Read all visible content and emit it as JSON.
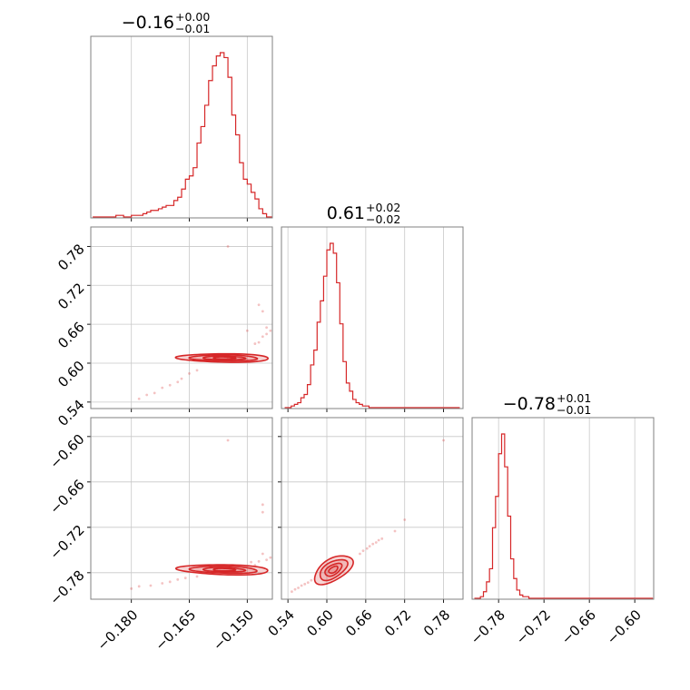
{
  "chart_data": {
    "type": "corner",
    "color": "#d62728",
    "grid": true,
    "parameters": [
      {
        "title_value": "−0.16",
        "title_plus": "+0.00",
        "title_minus": "−0.01",
        "range": [
          -0.1905,
          -0.1435
        ],
        "ticks": [
          -0.18,
          -0.165,
          -0.15
        ],
        "tick_labels": [
          "−0.180",
          "−0.165",
          "−0.150"
        ],
        "hist": {
          "x": [
            -0.19,
            -0.188,
            -0.186,
            -0.184,
            -0.182,
            -0.18,
            -0.179,
            -0.178,
            -0.177,
            -0.176,
            -0.175,
            -0.174,
            -0.173,
            -0.172,
            -0.171,
            -0.17,
            -0.169,
            -0.168,
            -0.167,
            -0.166,
            -0.165,
            -0.164,
            -0.163,
            -0.162,
            -0.161,
            -0.16,
            -0.159,
            -0.158,
            -0.157,
            -0.156,
            -0.155,
            -0.154,
            -0.153,
            -0.152,
            -0.151,
            -0.15,
            -0.149,
            -0.148,
            -0.147,
            -0.146,
            -0.145,
            -0.144
          ],
          "density": [
            0.0,
            0.0,
            0.0,
            0.01,
            0.0,
            0.01,
            0.01,
            0.01,
            0.02,
            0.03,
            0.04,
            0.04,
            0.05,
            0.06,
            0.07,
            0.07,
            0.1,
            0.12,
            0.17,
            0.23,
            0.25,
            0.3,
            0.45,
            0.55,
            0.68,
            0.83,
            0.92,
            0.98,
            1.0,
            0.97,
            0.85,
            0.62,
            0.5,
            0.33,
            0.23,
            0.2,
            0.15,
            0.11,
            0.05,
            0.02,
            0.0,
            0.0
          ]
        }
      },
      {
        "title_value": "0.61",
        "title_plus": "+0.02",
        "title_minus": "−0.02",
        "range": [
          0.53,
          0.81
        ],
        "ticks": [
          0.54,
          0.6,
          0.66,
          0.72,
          0.78
        ],
        "tick_labels": [
          "0.54",
          "0.60",
          "0.66",
          "0.72",
          "0.78"
        ],
        "hist": {
          "x": [
            0.535,
            0.54,
            0.545,
            0.55,
            0.555,
            0.56,
            0.565,
            0.57,
            0.575,
            0.58,
            0.585,
            0.59,
            0.595,
            0.6,
            0.605,
            0.61,
            0.615,
            0.62,
            0.625,
            0.63,
            0.635,
            0.64,
            0.645,
            0.65,
            0.655,
            0.66,
            0.665,
            0.67,
            0.68,
            0.7,
            0.74,
            0.78,
            0.8
          ],
          "density": [
            0.0,
            0.0,
            0.01,
            0.02,
            0.03,
            0.06,
            0.08,
            0.14,
            0.26,
            0.35,
            0.52,
            0.65,
            0.8,
            0.96,
            1.0,
            0.94,
            0.76,
            0.51,
            0.28,
            0.15,
            0.1,
            0.05,
            0.03,
            0.02,
            0.01,
            0.01,
            0.0,
            0.0,
            0.0,
            0.0,
            0.0,
            0.0,
            0.0
          ]
        }
      },
      {
        "title_value": "−0.78",
        "title_plus": "+0.01",
        "title_minus": "−0.01",
        "range": [
          -0.815,
          -0.575
        ],
        "ticks": [
          -0.78,
          -0.72,
          -0.66,
          -0.6
        ],
        "tick_labels": [
          "−0.78",
          "−0.72",
          "−0.66",
          "−0.60"
        ],
        "hist": {
          "x": [
            -0.812,
            -0.808,
            -0.804,
            -0.8,
            -0.796,
            -0.792,
            -0.788,
            -0.784,
            -0.78,
            -0.776,
            -0.772,
            -0.768,
            -0.764,
            -0.76,
            -0.756,
            -0.752,
            -0.748,
            -0.744,
            -0.74,
            -0.736,
            -0.7,
            -0.66,
            -0.62,
            -0.58
          ],
          "density": [
            0.0,
            0.0,
            0.01,
            0.04,
            0.1,
            0.18,
            0.43,
            0.62,
            0.88,
            1.0,
            0.8,
            0.5,
            0.24,
            0.12,
            0.05,
            0.02,
            0.01,
            0.01,
            0.0,
            0.0,
            0.0,
            0.0,
            0.0,
            0.0
          ]
        }
      }
    ],
    "pairs": [
      {
        "x_param": 0,
        "y_param": 1,
        "slope": 12.5,
        "mean": [
          -0.156,
          0.608
        ],
        "contours": [
          [
            0.0016,
            0.0029
          ],
          [
            0.0028,
            0.0055
          ],
          [
            0.0046,
            0.0088
          ],
          [
            0.0065,
            0.012
          ]
        ],
        "points": [
          [
            -0.178,
            0.545
          ],
          [
            -0.176,
            0.551
          ],
          [
            -0.174,
            0.554
          ],
          [
            -0.172,
            0.562
          ],
          [
            -0.17,
            0.566
          ],
          [
            -0.168,
            0.571
          ],
          [
            -0.167,
            0.576
          ],
          [
            -0.165,
            0.584
          ],
          [
            -0.163,
            0.589
          ],
          [
            -0.147,
            0.632
          ],
          [
            -0.146,
            0.641
          ],
          [
            -0.145,
            0.645
          ],
          [
            -0.144,
            0.65
          ],
          [
            -0.145,
            0.655
          ],
          [
            -0.146,
            0.68
          ],
          [
            -0.147,
            0.69
          ],
          [
            -0.155,
            0.78
          ],
          [
            -0.15,
            0.65
          ],
          [
            -0.148,
            0.63
          ]
        ]
      },
      {
        "x_param": 0,
        "y_param": 2,
        "slope": 5.8,
        "mean": [
          -0.156,
          -0.776
        ],
        "contours": [
          [
            0.0016,
            0.0029
          ],
          [
            0.0028,
            0.0055
          ],
          [
            0.0046,
            0.0088
          ],
          [
            0.0065,
            0.012
          ]
        ],
        "points": [
          [
            -0.18,
            -0.801
          ],
          [
            -0.178,
            -0.798
          ],
          [
            -0.175,
            -0.797
          ],
          [
            -0.172,
            -0.794
          ],
          [
            -0.17,
            -0.792
          ],
          [
            -0.168,
            -0.789
          ],
          [
            -0.166,
            -0.787
          ],
          [
            -0.163,
            -0.785
          ],
          [
            -0.149,
            -0.766
          ],
          [
            -0.147,
            -0.765
          ],
          [
            -0.145,
            -0.763
          ],
          [
            -0.144,
            -0.76
          ],
          [
            -0.146,
            -0.755
          ],
          [
            -0.146,
            -0.7
          ],
          [
            -0.146,
            -0.69
          ],
          [
            -0.155,
            -0.605
          ],
          [
            -0.148,
            -0.77
          ]
        ]
      },
      {
        "x_param": 1,
        "y_param": 2,
        "slope": 0.47,
        "mean": [
          0.61,
          -0.776
        ],
        "contours": [
          [
            0.0075,
            0.0036
          ],
          [
            0.014,
            0.0066
          ],
          [
            0.023,
            0.0106
          ],
          [
            0.032,
            0.0146
          ]
        ],
        "points": [
          [
            0.546,
            -0.805
          ],
          [
            0.551,
            -0.802
          ],
          [
            0.556,
            -0.8
          ],
          [
            0.561,
            -0.797
          ],
          [
            0.566,
            -0.795
          ],
          [
            0.571,
            -0.793
          ],
          [
            0.576,
            -0.79
          ],
          [
            0.651,
            -0.755
          ],
          [
            0.656,
            -0.751
          ],
          [
            0.662,
            -0.748
          ],
          [
            0.666,
            -0.745
          ],
          [
            0.671,
            -0.742
          ],
          [
            0.676,
            -0.74
          ],
          [
            0.68,
            -0.737
          ],
          [
            0.685,
            -0.735
          ],
          [
            0.705,
            -0.725
          ],
          [
            0.72,
            -0.71
          ],
          [
            0.78,
            -0.605
          ]
        ]
      }
    ]
  }
}
